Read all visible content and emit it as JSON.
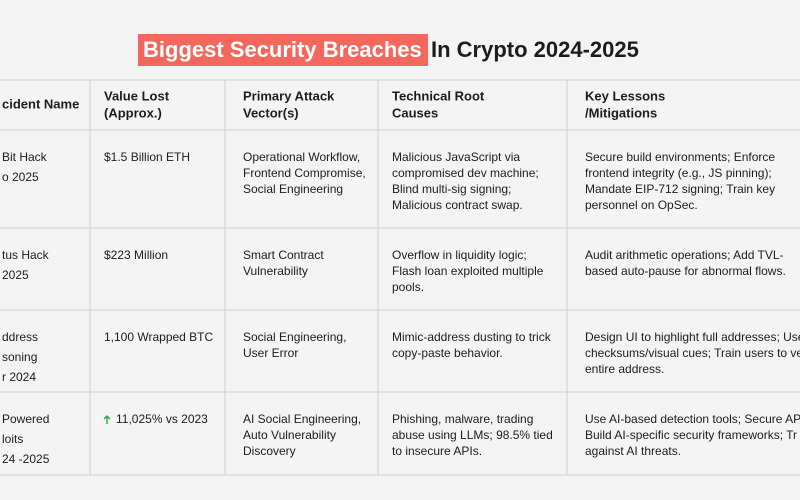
{
  "header": {
    "title_highlight": "Biggest Security Breaches",
    "title_rest": "In Crypto 2024-2025"
  },
  "table": {
    "columns": [
      [
        "cident Name"
      ],
      [
        "Value Lost",
        "(Approx.)"
      ],
      [
        "Primary Attack",
        "Vector(s)"
      ],
      [
        "Technical Root",
        "Causes"
      ],
      [
        "Key Lessons",
        "/Mitigations"
      ]
    ],
    "rows": [
      [
        [
          "Bit Hack",
          "o 2025"
        ],
        [
          "$1.5 Billion ETH"
        ],
        [
          "Operational Workflow,",
          "Frontend Compromise,",
          "Social Engineering"
        ],
        [
          "Malicious JavaScript via",
          "compromised dev machine;",
          "Blind multi-sig signing;",
          "Malicious contract swap."
        ],
        [
          "Secure build environments; Enforce",
          "frontend integrity (e.g., JS pinning);",
          "Mandate EIP-712 signing; Train key",
          "personnel on OpSec."
        ]
      ],
      [
        [
          "tus Hack",
          "2025"
        ],
        [
          "$223 Million"
        ],
        [
          "Smart Contract",
          "Vulnerability"
        ],
        [
          "Overflow in liquidity logic;",
          "Flash loan exploited multiple",
          "pools."
        ],
        [
          "Audit arithmetic operations; Add TVL-",
          "based auto-pause for abnormal flows."
        ]
      ],
      [
        [
          "ddress",
          "soning",
          "r 2024"
        ],
        [
          "1,100 Wrapped BTC"
        ],
        [
          "Social Engineering,",
          "User Error"
        ],
        [
          "Mimic-address dusting to trick",
          "copy-paste behavior."
        ],
        [
          "Design UI to highlight full addresses; Use",
          "checksums/visual cues; Train users to ver",
          "entire address."
        ]
      ],
      [
        [
          "Powered",
          "loits",
          "24 -2025"
        ],
        [
          "11,025% vs 2023"
        ],
        [
          "AI Social Engineering,",
          "Auto Vulnerability",
          "Discovery"
        ],
        [
          "Phishing, malware, trading",
          "abuse using LLMs; 98.5% tied",
          "to insecure APIs."
        ],
        [
          "Use AI-based detection tools; Secure AP",
          "Build AI-specific security frameworks; Tr",
          "against AI threats."
        ]
      ]
    ]
  }
}
